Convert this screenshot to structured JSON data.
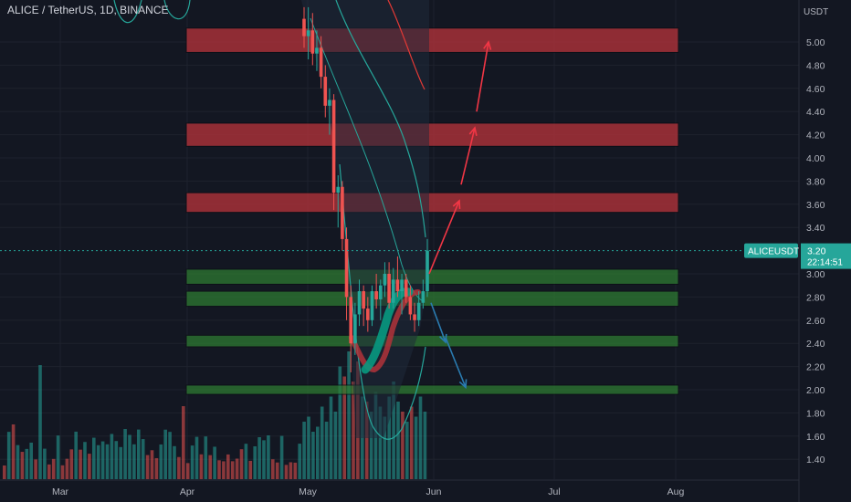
{
  "header": {
    "title": "ALICE / TetherUS, 1D, BINANCE"
  },
  "price_axis": {
    "unit": "USDT",
    "ticks": [
      "5.00",
      "4.80",
      "4.60",
      "4.40",
      "4.20",
      "4.00",
      "3.80",
      "3.60",
      "3.40",
      "3.00",
      "2.80",
      "2.60",
      "2.40",
      "2.20",
      "2.00",
      "1.80",
      "1.60",
      "1.40"
    ]
  },
  "time_axis": {
    "ticks": [
      "Mar",
      "Apr",
      "May",
      "Jun",
      "Jul",
      "Aug"
    ]
  },
  "price_label": {
    "symbol": "ALICEUSDT",
    "price": "3.20",
    "countdown": "22:14:51"
  },
  "colors": {
    "background": "#131722",
    "grid": "#1e222d",
    "bull": "#26a69a",
    "bear": "#ef5350",
    "resistance_zone": "#b2323a",
    "support_zone": "#2e7d32",
    "ma_teal": "#26a69a",
    "projection_up": "#f23645",
    "projection_down": "#2a7bb0",
    "price_line": "#26a69a"
  },
  "chart_data": {
    "type": "candlestick",
    "title": "ALICE / TetherUS, 1D, BINANCE",
    "y_unit": "USDT",
    "ylim": [
      1.25,
      5.3
    ],
    "x_ticks": [
      "Mar",
      "Apr",
      "May",
      "Jun",
      "Jul",
      "Aug"
    ],
    "grid": true,
    "last_price": 3.2,
    "zones": [
      {
        "kind": "resistance",
        "low": 4.91,
        "high": 5.12,
        "from": "Apr",
        "to": "Aug"
      },
      {
        "kind": "resistance",
        "low": 4.1,
        "high": 4.3,
        "from": "Apr",
        "to": "Aug"
      },
      {
        "kind": "resistance",
        "low": 3.53,
        "high": 3.7,
        "from": "Apr",
        "to": "Aug"
      },
      {
        "kind": "support",
        "low": 2.91,
        "high": 3.04,
        "from": "Apr",
        "to": "Aug"
      },
      {
        "kind": "support",
        "low": 2.72,
        "high": 2.85,
        "from": "Apr",
        "to": "Aug"
      },
      {
        "kind": "support",
        "low": 2.37,
        "high": 2.47,
        "from": "Apr",
        "to": "Aug"
      },
      {
        "kind": "support",
        "low": 1.96,
        "high": 2.04,
        "from": "Apr",
        "to": "Aug"
      }
    ],
    "candles": [
      {
        "d": "May 01",
        "o": 5.2,
        "h": 5.3,
        "l": 4.95,
        "c": 5.05
      },
      {
        "d": "May 02",
        "o": 5.05,
        "h": 5.3,
        "l": 4.85,
        "c": 5.1
      },
      {
        "d": "May 03",
        "o": 5.1,
        "h": 5.25,
        "l": 4.8,
        "c": 4.9
      },
      {
        "d": "May 04",
        "o": 4.9,
        "h": 5.1,
        "l": 4.75,
        "c": 4.95
      },
      {
        "d": "May 05",
        "o": 4.95,
        "h": 5.05,
        "l": 4.6,
        "c": 4.7
      },
      {
        "d": "May 06",
        "o": 4.7,
        "h": 4.8,
        "l": 4.35,
        "c": 4.45
      },
      {
        "d": "May 07",
        "o": 4.45,
        "h": 4.6,
        "l": 4.2,
        "c": 4.5
      },
      {
        "d": "May 08",
        "o": 4.5,
        "h": 4.55,
        "l": 3.55,
        "c": 3.7
      },
      {
        "d": "May 09",
        "o": 3.7,
        "h": 3.85,
        "l": 3.4,
        "c": 3.75
      },
      {
        "d": "May 10",
        "o": 3.75,
        "h": 3.8,
        "l": 3.2,
        "c": 3.3
      },
      {
        "d": "May 11",
        "o": 3.3,
        "h": 3.4,
        "l": 2.6,
        "c": 2.8
      },
      {
        "d": "May 12",
        "o": 2.8,
        "h": 2.9,
        "l": 2.15,
        "c": 2.4
      },
      {
        "d": "May 13",
        "o": 2.4,
        "h": 2.75,
        "l": 2.3,
        "c": 2.65
      },
      {
        "d": "May 14",
        "o": 2.65,
        "h": 2.95,
        "l": 2.55,
        "c": 2.85
      },
      {
        "d": "May 15",
        "o": 2.85,
        "h": 2.9,
        "l": 2.55,
        "c": 2.7
      },
      {
        "d": "May 16",
        "o": 2.7,
        "h": 2.8,
        "l": 2.5,
        "c": 2.6
      },
      {
        "d": "May 17",
        "o": 2.6,
        "h": 2.9,
        "l": 2.55,
        "c": 2.85
      },
      {
        "d": "May 18",
        "o": 2.85,
        "h": 3.0,
        "l": 2.7,
        "c": 2.78
      },
      {
        "d": "May 19",
        "o": 2.78,
        "h": 2.95,
        "l": 2.6,
        "c": 2.9
      },
      {
        "d": "May 20",
        "o": 2.9,
        "h": 3.1,
        "l": 2.8,
        "c": 3.0
      },
      {
        "d": "May 21",
        "o": 3.0,
        "h": 3.1,
        "l": 2.7,
        "c": 2.75
      },
      {
        "d": "May 22",
        "o": 2.75,
        "h": 3.05,
        "l": 2.7,
        "c": 2.95
      },
      {
        "d": "May 23",
        "o": 2.95,
        "h": 3.15,
        "l": 2.8,
        "c": 2.85
      },
      {
        "d": "May 24",
        "o": 2.85,
        "h": 3.0,
        "l": 2.65,
        "c": 2.95
      },
      {
        "d": "May 25",
        "o": 2.95,
        "h": 3.0,
        "l": 2.75,
        "c": 2.8
      },
      {
        "d": "May 26",
        "o": 2.8,
        "h": 2.9,
        "l": 2.6,
        "c": 2.65
      },
      {
        "d": "May 27",
        "o": 2.65,
        "h": 2.75,
        "l": 2.5,
        "c": 2.6
      },
      {
        "d": "May 28",
        "o": 2.6,
        "h": 2.85,
        "l": 2.55,
        "c": 2.75
      },
      {
        "d": "May 29",
        "o": 2.75,
        "h": 2.95,
        "l": 2.7,
        "c": 2.85
      },
      {
        "d": "May 30",
        "o": 2.85,
        "h": 3.3,
        "l": 2.8,
        "c": 3.2
      }
    ],
    "volume_relative": [
      0.3,
      0.35,
      0.2,
      0.25,
      0.45,
      0.3,
      0.55,
      0.4,
      0.85,
      0.75,
      1.0,
      0.7,
      0.9,
      0.55,
      0.5,
      0.4,
      0.6,
      0.45,
      0.35,
      0.55,
      0.7,
      0.5,
      0.4,
      0.3,
      0.45,
      0.35,
      0.55,
      0.4,
      0.3,
      0.25
    ],
    "projections": {
      "up": [
        [
          3.0,
          3.63
        ],
        [
          3.77,
          4.26
        ],
        [
          4.4,
          5.0
        ]
      ],
      "down": [
        [
          2.75,
          2.41
        ],
        [
          2.45,
          2.02
        ]
      ]
    }
  }
}
